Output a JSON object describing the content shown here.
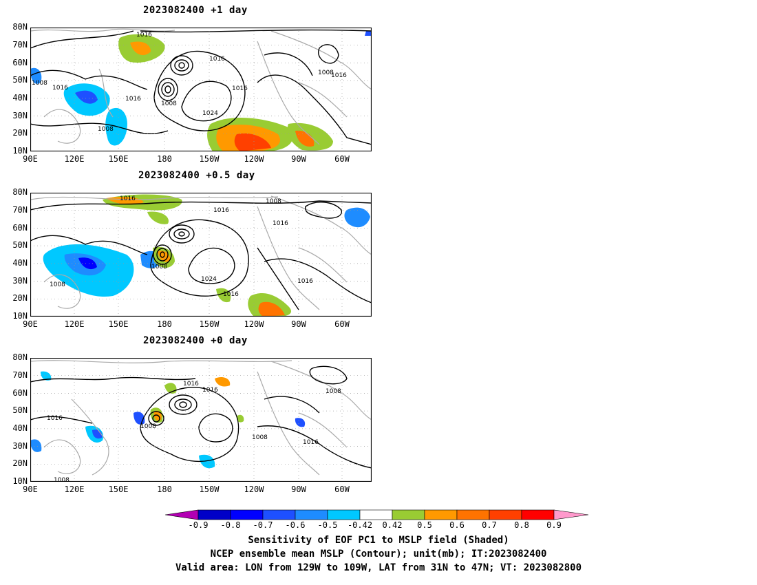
{
  "panels": [
    {
      "title": "2023082400  +1 day",
      "contour_labels": [
        "1016",
        "1016",
        "1008",
        "1016",
        "1016",
        "1008",
        "1024",
        "1016",
        "1008",
        "1016",
        "1008"
      ]
    },
    {
      "title": "2023082400  +0.5 day",
      "contour_labels": [
        "1016",
        "1016",
        "1008",
        "1016",
        "1008",
        "1024",
        "1016",
        "1016",
        "1008"
      ]
    },
    {
      "title": "2023082400  +0 day",
      "contour_labels": [
        "1016",
        "1016",
        "1008",
        "1016",
        "1008",
        "1008",
        "1016",
        "1008"
      ]
    }
  ],
  "axes": {
    "lat_labels": [
      "80N",
      "70N",
      "60N",
      "50N",
      "40N",
      "30N",
      "20N",
      "10N"
    ],
    "lon_labels": [
      "90E",
      "120E",
      "150E",
      "180",
      "150W",
      "120W",
      "90W",
      "60W"
    ]
  },
  "colorbar": {
    "ticks": [
      "-0.9",
      "-0.8",
      "-0.7",
      "-0.6",
      "-0.5",
      "-0.42",
      "0.42",
      "0.5",
      "0.6",
      "0.7",
      "0.8",
      "0.9"
    ],
    "colors": [
      "#b300b3",
      "#0000c8",
      "#0000ff",
      "#1e50ff",
      "#1e8cff",
      "#00c8ff",
      "#ffffff",
      "#99cc33",
      "#ff9900",
      "#ff7300",
      "#ff4000",
      "#ff0000",
      "#ff99cc"
    ]
  },
  "caption": {
    "line1": "Sensitivity of EOF PC1 to MSLP field (Shaded)",
    "line2": "NCEP ensemble mean MSLP (Contour); unit(mb); IT:2023082400",
    "line3": "Valid area: LON from 129W to 109W, LAT from 31N to 47N; VT: 2023082800"
  }
}
